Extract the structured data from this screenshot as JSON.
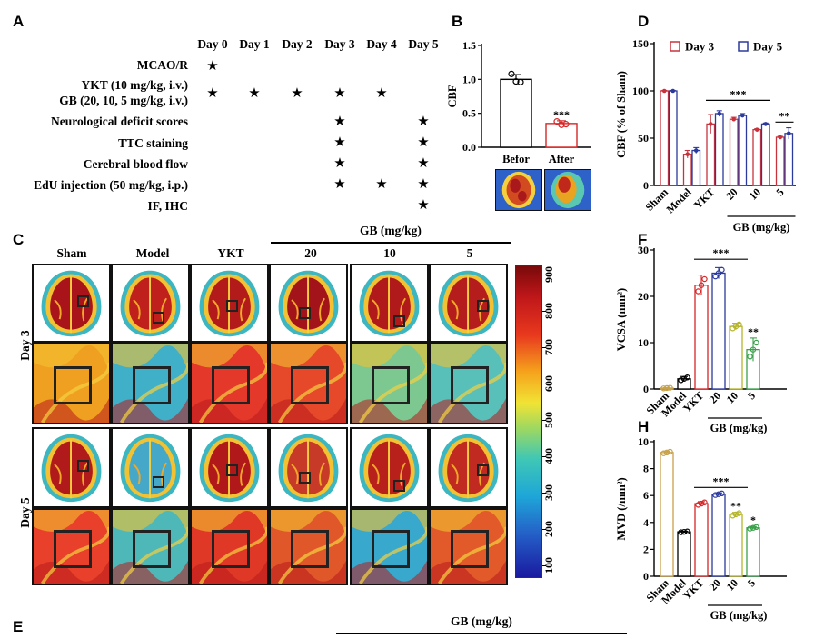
{
  "panel_labels": {
    "A": "A",
    "B": "B",
    "C": "C",
    "D": "D",
    "E": "E",
    "F": "F",
    "H": "H"
  },
  "timeline": {
    "days": [
      "Day 0",
      "Day 1",
      "Day 2",
      "Day 3",
      "Day 4",
      "Day 5"
    ],
    "rows": [
      {
        "label": "MCAO/R",
        "stars": [
          0
        ]
      },
      {
        "label": "YKT (10 mg/kg, i.v.)",
        "stars": []
      },
      {
        "label": "GB (20, 10, 5 mg/kg, i.v.)",
        "stars": [
          0,
          1,
          2,
          3,
          4
        ]
      },
      {
        "label": "Neurological deficit scores",
        "stars": [
          3,
          5
        ]
      },
      {
        "label": "TTC staining",
        "stars": [
          3,
          5
        ]
      },
      {
        "label": "Cerebral blood flow",
        "stars": [
          3,
          5
        ]
      },
      {
        "label": "EdU injection (50 mg/kg, i.p.)",
        "stars": [
          3,
          4,
          5
        ]
      },
      {
        "label": "IF, IHC",
        "stars": [
          5
        ]
      }
    ],
    "star_glyph": "★"
  },
  "panel_c": {
    "gb_label": "GB (mg/kg)",
    "columns": [
      "Sham",
      "Model",
      "YKT",
      "20",
      "10",
      "5"
    ],
    "row_labels": [
      "Day 3",
      "Day 5"
    ],
    "colorbar_ticks": [
      "900",
      "800",
      "700",
      "600",
      "500",
      "400",
      "300",
      "200",
      "100"
    ]
  },
  "panel_e": {
    "gb_label": "GB (mg/kg)"
  },
  "chart_data": [
    {
      "id": "B",
      "type": "bar",
      "ylabel": "CBF",
      "ylim": [
        0,
        1.5
      ],
      "yticks": [
        "0.0",
        "0.5",
        "1.0",
        "1.5"
      ],
      "categories": [
        "Befor",
        "After"
      ],
      "values": [
        1.0,
        0.35
      ],
      "points": [
        [
          1.08,
          0.97,
          0.96
        ],
        [
          0.38,
          0.33,
          0.34
        ]
      ],
      "errors": [
        0.07,
        0.04
      ],
      "colors": [
        "#000000",
        "#d62728"
      ],
      "annotations": [
        "",
        "***"
      ]
    },
    {
      "id": "D",
      "type": "bar",
      "ylabel": "CBF (% of Sham)",
      "ylim": [
        0,
        150
      ],
      "yticks": [
        "0",
        "50",
        "100",
        "150"
      ],
      "categories": [
        "Sham",
        "Model",
        "YKT",
        "20",
        "10",
        "5"
      ],
      "group_label": "GB (mg/kg)",
      "series": [
        {
          "name": "Day 3",
          "color": "#c8323c",
          "values": [
            100,
            33,
            65,
            70,
            59,
            51
          ]
        },
        {
          "name": "Day 5",
          "color": "#2b3a9c",
          "values": [
            100,
            37,
            76,
            74,
            65,
            55
          ]
        }
      ],
      "errors": [
        [
          0.5,
          4,
          10,
          2,
          1,
          1
        ],
        [
          0.5,
          3,
          3,
          2,
          1,
          6
        ]
      ],
      "sig_bar": "***",
      "sig_pair": "**"
    },
    {
      "id": "F",
      "type": "bar",
      "ylabel": "VCSA (mm²)",
      "ylim": [
        0,
        30
      ],
      "yticks": [
        "0",
        "10",
        "20",
        "30"
      ],
      "categories": [
        "Sham",
        "Model",
        "YKT",
        "20",
        "10",
        "5"
      ],
      "group_label": "GB (mg/kg)",
      "values": [
        0.2,
        2.2,
        22.4,
        25.0,
        13.5,
        8.5
      ],
      "errors": [
        0.1,
        0.5,
        2.2,
        1.2,
        0.7,
        2.5
      ],
      "colors": [
        "#c8a24a",
        "#000000",
        "#d62728",
        "#2b3a9c",
        "#b5b52a",
        "#3aa14a"
      ],
      "sig_bar": "***",
      "annotations": [
        "",
        "",
        "",
        "",
        "",
        "**"
      ]
    },
    {
      "id": "H",
      "type": "bar",
      "ylabel": "MVD (/mm²)",
      "ylim": [
        0,
        10
      ],
      "yticks": [
        "0",
        "2",
        "4",
        "6",
        "8",
        "10"
      ],
      "categories": [
        "Sham",
        "Model",
        "YKT",
        "20",
        "10",
        "5"
      ],
      "group_label": "GB (mg/kg)",
      "values": [
        9.2,
        3.3,
        5.4,
        6.1,
        4.6,
        3.6
      ],
      "errors": [
        0.1,
        0.05,
        0.15,
        0.1,
        0.15,
        0.1
      ],
      "colors": [
        "#c8a24a",
        "#000000",
        "#d62728",
        "#2b3a9c",
        "#b5b52a",
        "#3aa14a"
      ],
      "sig_bar": "***",
      "annotations": [
        "",
        "",
        "",
        "",
        "**",
        "*"
      ]
    }
  ]
}
